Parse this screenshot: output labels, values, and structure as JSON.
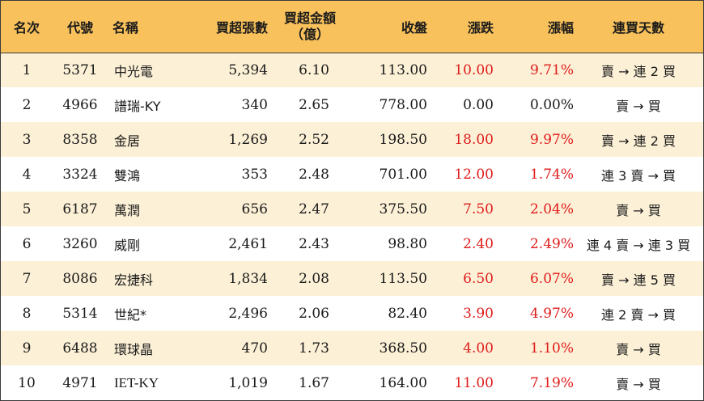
{
  "header": {
    "rank": "名次",
    "code": "代號",
    "name": "名稱",
    "net_buy_lots": "買超張數",
    "net_buy_amount_line1": "買超金額",
    "net_buy_amount_line2": "（億）",
    "close": "收盤",
    "change": "漲跌",
    "change_pct": "漲幅",
    "streak": "連買天數"
  },
  "colors": {
    "header_bg": "#f8c15c",
    "odd_row_bg": "#fcf0d6",
    "up": "#e01b1b"
  },
  "rows": [
    {
      "rank": "1",
      "code": "5371",
      "name": "中光電",
      "lots": "5,394",
      "amount": "6.10",
      "close": "113.00",
      "change": "10.00",
      "pct": "9.71%",
      "streak": "賣 → 連 2 買",
      "up": true
    },
    {
      "rank": "2",
      "code": "4966",
      "name": "譜瑞-KY",
      "lots": "340",
      "amount": "2.65",
      "close": "778.00",
      "change": "0.00",
      "pct": "0.00%",
      "streak": "賣 → 買",
      "up": false
    },
    {
      "rank": "3",
      "code": "8358",
      "name": "金居",
      "lots": "1,269",
      "amount": "2.52",
      "close": "198.50",
      "change": "18.00",
      "pct": "9.97%",
      "streak": "賣 → 連 2 買",
      "up": true
    },
    {
      "rank": "4",
      "code": "3324",
      "name": "雙鴻",
      "lots": "353",
      "amount": "2.48",
      "close": "701.00",
      "change": "12.00",
      "pct": "1.74%",
      "streak": "連 3 賣 → 買",
      "up": true
    },
    {
      "rank": "5",
      "code": "6187",
      "name": "萬潤",
      "lots": "656",
      "amount": "2.47",
      "close": "375.50",
      "change": "7.50",
      "pct": "2.04%",
      "streak": "賣 → 買",
      "up": true
    },
    {
      "rank": "6",
      "code": "3260",
      "name": "威剛",
      "lots": "2,461",
      "amount": "2.43",
      "close": "98.80",
      "change": "2.40",
      "pct": "2.49%",
      "streak": "連 4 賣 → 連 3 買",
      "up": true
    },
    {
      "rank": "7",
      "code": "8086",
      "name": "宏捷科",
      "lots": "1,834",
      "amount": "2.08",
      "close": "113.50",
      "change": "6.50",
      "pct": "6.07%",
      "streak": "賣 → 連 5 買",
      "up": true
    },
    {
      "rank": "8",
      "code": "5314",
      "name": "世紀*",
      "lots": "2,496",
      "amount": "2.06",
      "close": "82.40",
      "change": "3.90",
      "pct": "4.97%",
      "streak": "連 2 賣 → 買",
      "up": true
    },
    {
      "rank": "9",
      "code": "6488",
      "name": "環球晶",
      "lots": "470",
      "amount": "1.73",
      "close": "368.50",
      "change": "4.00",
      "pct": "1.10%",
      "streak": "賣 → 買",
      "up": true
    },
    {
      "rank": "10",
      "code": "4971",
      "name": "IET-KY",
      "lots": "1,019",
      "amount": "1.67",
      "close": "164.00",
      "change": "11.00",
      "pct": "7.19%",
      "streak": "賣 → 買",
      "up": true
    }
  ]
}
